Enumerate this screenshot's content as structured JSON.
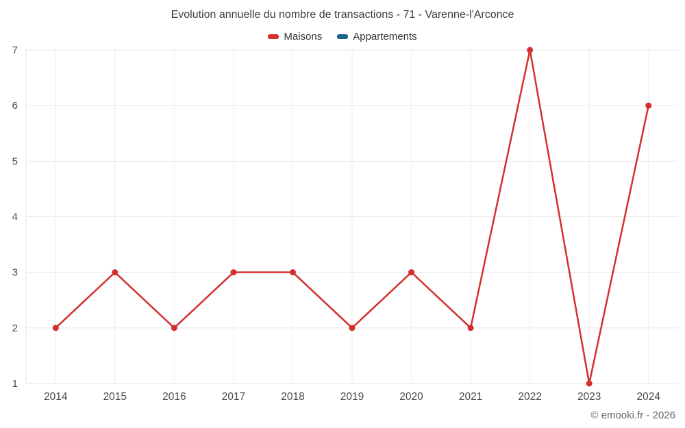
{
  "chart_data": {
    "type": "line",
    "title": "Evolution annuelle du nombre de transactions - 71 - Varenne-l'Arconce",
    "categories": [
      "2014",
      "2015",
      "2016",
      "2017",
      "2018",
      "2019",
      "2020",
      "2021",
      "2022",
      "2023",
      "2024"
    ],
    "series": [
      {
        "name": "Maisons",
        "color": "#d32f2f",
        "values": [
          2,
          3,
          2,
          3,
          3,
          2,
          3,
          2,
          7,
          1,
          6
        ]
      },
      {
        "name": "Appartements",
        "color": "#17648d",
        "values": []
      }
    ],
    "ylim": [
      1,
      7
    ],
    "yticks": [
      1,
      2,
      3,
      4,
      5,
      6,
      7
    ],
    "xlabel": "",
    "ylabel": "",
    "grid": true,
    "legend_position": "top",
    "grid_color": "#e6e6e6",
    "axis_label_color": "#4a4a4a"
  },
  "footer": {
    "text": "© emooki.fr - 2026"
  }
}
